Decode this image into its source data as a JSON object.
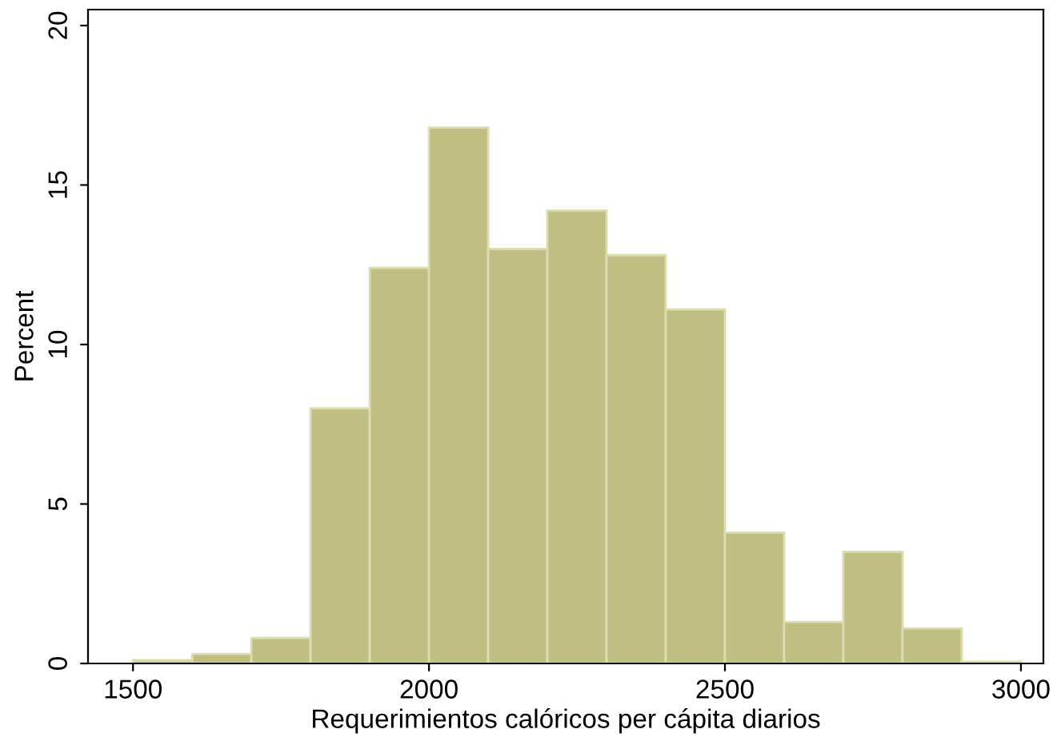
{
  "chart_data": {
    "type": "histogram",
    "xlabel": "Requerimientos calóricos per cápita diarios",
    "ylabel": "Percent",
    "bins": [
      1500,
      1600,
      1700,
      1800,
      1900,
      2000,
      2100,
      2200,
      2300,
      2400,
      2500,
      2600,
      2700,
      2800,
      2900,
      3000
    ],
    "values": [
      0.1,
      0.3,
      0.8,
      8.0,
      12.4,
      16.8,
      13.0,
      14.2,
      12.8,
      11.1,
      4.1,
      1.3,
      3.5,
      1.1,
      0.05
    ],
    "color": "#bfbf84",
    "xlim": [
      1424,
      3038
    ],
    "xticks": [
      1500,
      2000,
      2500,
      3000
    ],
    "ylim": [
      0,
      20.5
    ],
    "yticks": [
      0,
      5,
      10,
      15,
      20
    ],
    "grid": false,
    "legend": false
  }
}
